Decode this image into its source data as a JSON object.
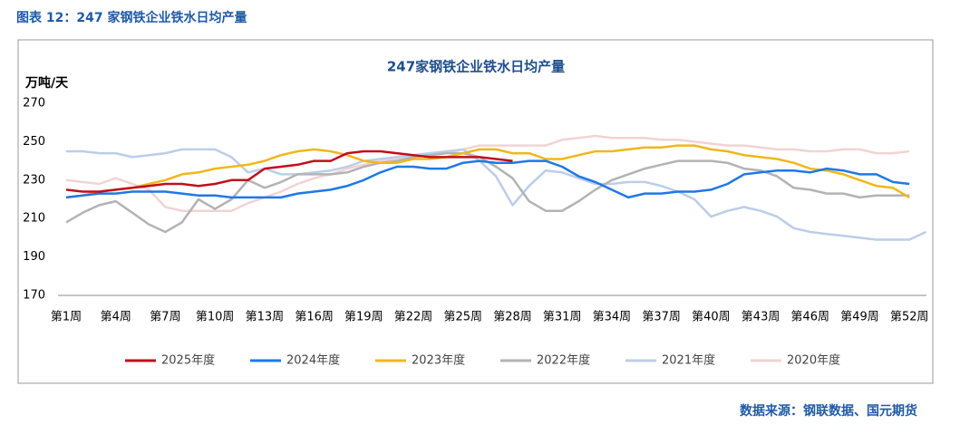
{
  "caption": "图表 12：247 家钢铁企业铁水日均产量",
  "source": "数据来源：钢联数据、国元期货",
  "chart_data": {
    "type": "line",
    "title": "247家钢铁企业铁水日均产量",
    "y_label": "万吨/天",
    "categories": [
      "第1周",
      null,
      null,
      "第4周",
      null,
      null,
      "第7周",
      null,
      null,
      "第10周",
      null,
      null,
      "第13周",
      null,
      null,
      "第16周",
      null,
      null,
      "第19周",
      null,
      null,
      "第22周",
      null,
      null,
      "第25周",
      null,
      null,
      "第28周",
      null,
      null,
      "第31周",
      null,
      null,
      "第34周",
      null,
      null,
      "第37周",
      null,
      null,
      "第40周",
      null,
      null,
      "第43周",
      null,
      null,
      "第46周",
      null,
      null,
      "第49周",
      null,
      null,
      "第52周",
      null
    ],
    "ylim": [
      170,
      270
    ],
    "yticks": [
      170,
      190,
      210,
      230,
      250,
      270
    ],
    "grid": false,
    "legend": "bottom",
    "series": [
      {
        "name": "2025年度",
        "color": "#c00f1c",
        "values": [
          225,
          224,
          224,
          225,
          226,
          227,
          228,
          228,
          227,
          228,
          230,
          230,
          236,
          237,
          238,
          240,
          240,
          244,
          245,
          245,
          244,
          243,
          242,
          242,
          242,
          242,
          241,
          240,
          null,
          null,
          null,
          null,
          null,
          null,
          null,
          null,
          null,
          null,
          null,
          null,
          null,
          null,
          null,
          null,
          null,
          null,
          null,
          null,
          null,
          null,
          null,
          null,
          null
        ]
      },
      {
        "name": "2024年度",
        "color": "#1f78e6",
        "values": [
          221,
          222,
          223,
          223,
          224,
          224,
          224,
          223,
          222,
          222,
          221,
          221,
          221,
          221,
          223,
          224,
          225,
          227,
          230,
          234,
          237,
          237,
          236,
          236,
          239,
          240,
          239,
          239,
          240,
          240,
          237,
          232,
          229,
          225,
          221,
          223,
          223,
          224,
          224,
          225,
          228,
          233,
          234,
          235,
          235,
          234,
          236,
          235,
          233,
          233,
          229,
          228,
          null
        ]
      },
      {
        "name": "2023年度",
        "color": "#f0b71a",
        "values": [
          221,
          222,
          224,
          225,
          226,
          228,
          230,
          233,
          234,
          236,
          237,
          238,
          240,
          243,
          245,
          246,
          245,
          243,
          240,
          239,
          239,
          241,
          241,
          242,
          244,
          246,
          246,
          244,
          244,
          241,
          241,
          243,
          245,
          245,
          246,
          247,
          247,
          248,
          248,
          246,
          245,
          243,
          242,
          241,
          239,
          236,
          235,
          233,
          230,
          227,
          226,
          221,
          null
        ]
      },
      {
        "name": "2022年度",
        "color": "#b3b3b3",
        "values": [
          208,
          213,
          217,
          219,
          213,
          207,
          203,
          208,
          220,
          215,
          220,
          230,
          226,
          229,
          233,
          233,
          233,
          234,
          237,
          239,
          240,
          242,
          243,
          244,
          244,
          242,
          237,
          231,
          219,
          214,
          214,
          219,
          225,
          230,
          233,
          236,
          238,
          240,
          240,
          240,
          239,
          236,
          235,
          232,
          226,
          225,
          223,
          223,
          221,
          222,
          222,
          222,
          null
        ]
      },
      {
        "name": "2021年度",
        "color": "#bccde9",
        "values": [
          245,
          245,
          244,
          244,
          242,
          243,
          244,
          246,
          246,
          246,
          242,
          234,
          236,
          233,
          233,
          234,
          235,
          237,
          240,
          241,
          242,
          243,
          244,
          245,
          246,
          240,
          232,
          217,
          227,
          235,
          234,
          231,
          228,
          228,
          229,
          229,
          227,
          224,
          220,
          211,
          214,
          216,
          214,
          211,
          205,
          203,
          202,
          201,
          200,
          199,
          199,
          199,
          203
        ]
      },
      {
        "name": "2020年度",
        "color": "#f2d3d3",
        "values": [
          230,
          229,
          228,
          231,
          228,
          225,
          216,
          214,
          214,
          214,
          214,
          218,
          221,
          224,
          228,
          231,
          233,
          236,
          238,
          240,
          241,
          242,
          243,
          244,
          246,
          248,
          248,
          248,
          248,
          248,
          251,
          252,
          253,
          252,
          252,
          252,
          251,
          251,
          250,
          249,
          248,
          248,
          247,
          246,
          246,
          245,
          245,
          246,
          246,
          244,
          244,
          245,
          null
        ]
      }
    ]
  }
}
